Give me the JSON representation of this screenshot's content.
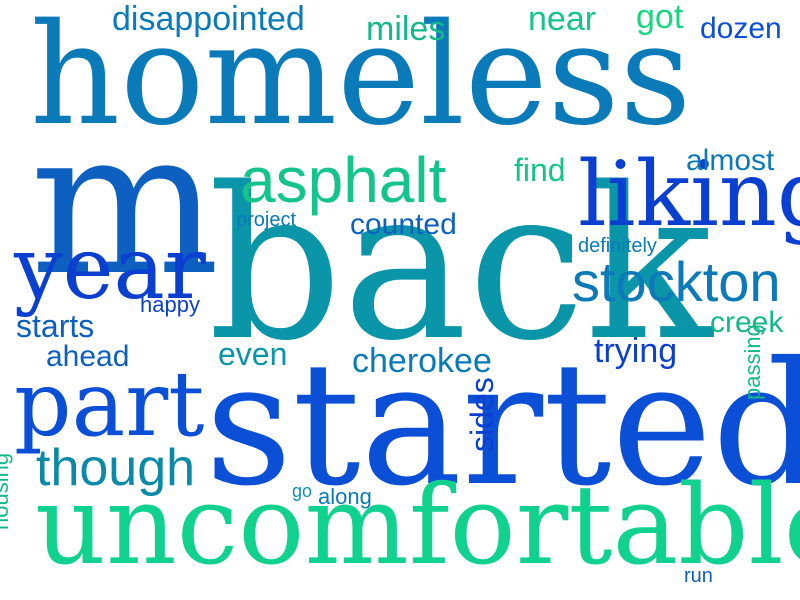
{
  "colors": {
    "background": "#ffffff",
    "palette": [
      "#0a7ab8",
      "#0b4fd6",
      "#0a96a8",
      "#11c28a",
      "#14b88a",
      "#0d5fc0"
    ]
  },
  "words": [
    {
      "id": "homeless",
      "text": "homeless",
      "color": "#0a7ab8"
    },
    {
      "id": "m",
      "text": "m",
      "color": "#0d5fc0"
    },
    {
      "id": "back",
      "text": "back",
      "color": "#0a96a8"
    },
    {
      "id": "started",
      "text": "started",
      "color": "#0b4fd6"
    },
    {
      "id": "uncomfortable",
      "text": "uncomfortable",
      "color": "#11d18f"
    },
    {
      "id": "part",
      "text": "part",
      "color": "#0b4fd6"
    },
    {
      "id": "year",
      "text": "year",
      "color": "#0b3fd0"
    },
    {
      "id": "liking",
      "text": "liking",
      "color": "#0b3fd0"
    },
    {
      "id": "asphalt",
      "text": "asphalt",
      "color": "#14c48a"
    },
    {
      "id": "stockton",
      "text": "stockton",
      "color": "#0a7ab8"
    },
    {
      "id": "though",
      "text": "though",
      "color": "#0a8aa8"
    },
    {
      "id": "disappointed",
      "text": "disappointed",
      "color": "#0a7ab8"
    },
    {
      "id": "miles",
      "text": "miles",
      "color": "#14b88a"
    },
    {
      "id": "near",
      "text": "near",
      "color": "#14c48a"
    },
    {
      "id": "got",
      "text": "got",
      "color": "#17d67f"
    },
    {
      "id": "dozen",
      "text": "dozen",
      "color": "#0b4fd6"
    },
    {
      "id": "almost",
      "text": "almost",
      "color": "#0a7ab8"
    },
    {
      "id": "find",
      "text": "find",
      "color": "#14c48a"
    },
    {
      "id": "project",
      "text": "project",
      "color": "#0a7ab8"
    },
    {
      "id": "counted",
      "text": "counted",
      "color": "#0d5fc0"
    },
    {
      "id": "definitely",
      "text": "definitely",
      "color": "#0a7ab8"
    },
    {
      "id": "happy",
      "text": "happy",
      "color": "#0b3fd0"
    },
    {
      "id": "starts",
      "text": "starts",
      "color": "#0d5fc0"
    },
    {
      "id": "ahead",
      "text": "ahead",
      "color": "#0d5fc0"
    },
    {
      "id": "even",
      "text": "even",
      "color": "#0a96a8"
    },
    {
      "id": "cherokee",
      "text": "cherokee",
      "color": "#0a7ab8"
    },
    {
      "id": "trying",
      "text": "trying",
      "color": "#0b3fd0"
    },
    {
      "id": "creek",
      "text": "creek",
      "color": "#14b88a"
    },
    {
      "id": "passing",
      "text": "passing",
      "color": "#14b88a"
    },
    {
      "id": "sides",
      "text": "sides",
      "color": "#0b3fd0"
    },
    {
      "id": "go",
      "text": "go",
      "color": "#0a96a8"
    },
    {
      "id": "along",
      "text": "along",
      "color": "#0a7ab8"
    },
    {
      "id": "housing",
      "text": "housing",
      "color": "#14b88a"
    },
    {
      "id": "run",
      "text": "run",
      "color": "#0d5fc0"
    }
  ]
}
